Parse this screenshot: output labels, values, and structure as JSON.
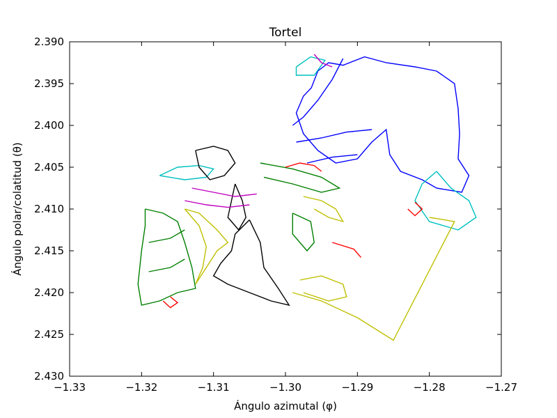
{
  "chart_data": {
    "type": "line",
    "title": "Tortel",
    "xlabel": "Ángulo azimutal (φ)",
    "ylabel": "Ángulo polar/colatitud (θ)",
    "xlim": [
      -1.33,
      -1.27
    ],
    "ylim": [
      2.43,
      2.39
    ],
    "y_inverted": true,
    "grid": false,
    "xticks": [
      -1.33,
      -1.32,
      -1.31,
      -1.3,
      -1.29,
      -1.28,
      -1.27
    ],
    "xtick_labels": [
      "−1.33",
      "−1.32",
      "−1.31",
      "−1.30",
      "−1.29",
      "−1.28",
      "−1.27"
    ],
    "yticks": [
      2.39,
      2.395,
      2.4,
      2.405,
      2.41,
      2.415,
      2.42,
      2.425,
      2.43
    ],
    "ytick_labels": [
      "2.390",
      "2.395",
      "2.400",
      "2.405",
      "2.410",
      "2.415",
      "2.420",
      "2.425",
      "2.430"
    ],
    "series": [
      {
        "color": "#0000ff",
        "points": [
          [
            -1.2964,
            2.3955
          ],
          [
            -1.2955,
            2.3935
          ],
          [
            -1.294,
            2.3925
          ],
          [
            -1.292,
            2.3928
          ],
          [
            -1.289,
            2.3918
          ],
          [
            -1.286,
            2.3925
          ],
          [
            -1.282,
            2.393
          ],
          [
            -1.279,
            2.3935
          ],
          [
            -1.2765,
            2.395
          ],
          [
            -1.276,
            2.398
          ],
          [
            -1.2758,
            2.401
          ],
          [
            -1.276,
            2.404
          ],
          [
            -1.2745,
            2.406
          ],
          [
            -1.2755,
            2.408
          ],
          [
            -1.279,
            2.4075
          ],
          [
            -1.281,
            2.4065
          ],
          [
            -1.284,
            2.4055
          ],
          [
            -1.2855,
            2.4035
          ],
          [
            -1.286,
            2.4005
          ],
          [
            -1.288,
            2.402
          ],
          [
            -1.29,
            2.404
          ],
          [
            -1.293,
            2.4045
          ],
          [
            -1.2955,
            2.403
          ],
          [
            -1.2975,
            2.401
          ],
          [
            -1.2985,
            2.3985
          ],
          [
            -1.2975,
            2.3965
          ],
          [
            -1.2964,
            2.3955
          ]
        ]
      },
      {
        "color": "#0000ff",
        "points": [
          [
            -1.292,
            2.392
          ],
          [
            -1.2935,
            2.3945
          ],
          [
            -1.2955,
            2.397
          ],
          [
            -1.2975,
            2.399
          ],
          [
            -1.299,
            2.4
          ]
        ]
      },
      {
        "color": "#0000ff",
        "points": [
          [
            -1.2985,
            2.402
          ],
          [
            -1.295,
            2.4015
          ],
          [
            -1.2915,
            2.4008
          ],
          [
            -1.288,
            2.4005
          ]
        ]
      },
      {
        "color": "#0000ff",
        "points": [
          [
            -1.297,
            2.4045
          ],
          [
            -1.2935,
            2.4038
          ],
          [
            -1.29,
            2.4035
          ]
        ]
      },
      {
        "color": "#00bfbf",
        "points": [
          [
            -1.279,
            2.4055
          ],
          [
            -1.277,
            2.4075
          ],
          [
            -1.2745,
            2.409
          ],
          [
            -1.2735,
            2.411
          ],
          [
            -1.276,
            2.4125
          ],
          [
            -1.28,
            2.4115
          ],
          [
            -1.282,
            2.409
          ],
          [
            -1.281,
            2.407
          ],
          [
            -1.279,
            2.4055
          ]
        ]
      },
      {
        "color": "#00bfbf",
        "points": [
          [
            -1.3175,
            2.406
          ],
          [
            -1.315,
            2.405
          ],
          [
            -1.312,
            2.4048
          ],
          [
            -1.31,
            2.4052
          ],
          [
            -1.311,
            2.4062
          ],
          [
            -1.314,
            2.4065
          ],
          [
            -1.3175,
            2.406
          ]
        ]
      },
      {
        "color": "#00bfbf",
        "points": [
          [
            -1.2985,
            2.393
          ],
          [
            -1.2965,
            2.3918
          ],
          [
            -1.2945,
            2.3922
          ],
          [
            -1.296,
            2.394
          ],
          [
            -1.2985,
            2.394
          ],
          [
            -1.2985,
            2.393
          ]
        ]
      },
      {
        "color": "#000000",
        "points": [
          [
            -1.305,
            2.4113
          ],
          [
            -1.3035,
            2.414
          ],
          [
            -1.303,
            2.417
          ],
          [
            -1.301,
            2.4195
          ],
          [
            -1.2995,
            2.4215
          ],
          [
            -1.302,
            2.421
          ],
          [
            -1.305,
            2.42
          ],
          [
            -1.308,
            2.419
          ],
          [
            -1.31,
            2.418
          ],
          [
            -1.309,
            2.4165
          ],
          [
            -1.3075,
            2.415
          ],
          [
            -1.307,
            2.413
          ],
          [
            -1.305,
            2.4113
          ]
        ]
      },
      {
        "color": "#000000",
        "points": [
          [
            -1.3125,
            2.403
          ],
          [
            -1.31,
            2.4025
          ],
          [
            -1.308,
            2.403
          ],
          [
            -1.307,
            2.4045
          ],
          [
            -1.3085,
            2.406
          ],
          [
            -1.3105,
            2.4065
          ],
          [
            -1.312,
            2.405
          ],
          [
            -1.3125,
            2.403
          ]
        ]
      },
      {
        "color": "#000000",
        "points": [
          [
            -1.307,
            2.407
          ],
          [
            -1.306,
            2.409
          ],
          [
            -1.3055,
            2.411
          ],
          [
            -1.3065,
            2.4125
          ],
          [
            -1.308,
            2.411
          ],
          [
            -1.307,
            2.407
          ]
        ]
      },
      {
        "color": "#bfbf00",
        "points": [
          [
            -1.314,
            2.41
          ],
          [
            -1.312,
            2.412
          ],
          [
            -1.311,
            2.4145
          ],
          [
            -1.3115,
            2.417
          ],
          [
            -1.3125,
            2.419
          ],
          [
            -1.311,
            2.417
          ],
          [
            -1.3095,
            2.415
          ],
          [
            -1.308,
            2.414
          ],
          [
            -1.3095,
            2.4125
          ],
          [
            -1.312,
            2.4105
          ],
          [
            -1.314,
            2.41
          ]
        ]
      },
      {
        "color": "#bfbf00",
        "points": [
          [
            -1.299,
            2.42
          ],
          [
            -1.295,
            2.421
          ],
          [
            -1.29,
            2.423
          ],
          [
            -1.285,
            2.4257
          ],
          [
            -1.2765,
            2.4115
          ],
          [
            -1.28,
            2.411
          ]
        ]
      },
      {
        "color": "#bfbf00",
        "points": [
          [
            -1.2975,
            2.4085
          ],
          [
            -1.295,
            2.409
          ],
          [
            -1.293,
            2.41
          ],
          [
            -1.292,
            2.4115
          ],
          [
            -1.294,
            2.411
          ],
          [
            -1.296,
            2.41
          ]
        ]
      },
      {
        "color": "#bfbf00",
        "points": [
          [
            -1.298,
            2.4185
          ],
          [
            -1.295,
            2.418
          ],
          [
            -1.292,
            2.419
          ],
          [
            -1.2915,
            2.4205
          ],
          [
            -1.294,
            2.421
          ],
          [
            -1.2975,
            2.42
          ]
        ]
      },
      {
        "color": "#008000",
        "points": [
          [
            -1.3195,
            2.41
          ],
          [
            -1.317,
            2.4105
          ],
          [
            -1.315,
            2.4115
          ],
          [
            -1.314,
            2.414
          ],
          [
            -1.313,
            2.417
          ],
          [
            -1.3125,
            2.4195
          ],
          [
            -1.315,
            2.42
          ],
          [
            -1.3175,
            2.421
          ],
          [
            -1.32,
            2.4215
          ],
          [
            -1.3205,
            2.419
          ],
          [
            -1.32,
            2.415
          ],
          [
            -1.3195,
            2.412
          ],
          [
            -1.3195,
            2.41
          ]
        ]
      },
      {
        "color": "#008000",
        "points": [
          [
            -1.3035,
            2.4045
          ],
          [
            -1.299,
            2.4052
          ],
          [
            -1.295,
            2.4062
          ],
          [
            -1.2925,
            2.4075
          ],
          [
            -1.295,
            2.408
          ],
          [
            -1.299,
            2.407
          ],
          [
            -1.303,
            2.4062
          ]
        ]
      },
      {
        "color": "#008000",
        "points": [
          [
            -1.299,
            2.4105
          ],
          [
            -1.2965,
            2.4115
          ],
          [
            -1.296,
            2.414
          ],
          [
            -1.297,
            2.415
          ],
          [
            -1.299,
            2.413
          ],
          [
            -1.299,
            2.4105
          ]
        ]
      },
      {
        "color": "#008000",
        "points": [
          [
            -1.319,
            2.4175
          ],
          [
            -1.316,
            2.417
          ],
          [
            -1.314,
            2.416
          ]
        ]
      },
      {
        "color": "#008000",
        "points": [
          [
            -1.319,
            2.414
          ],
          [
            -1.316,
            2.4135
          ],
          [
            -1.314,
            2.4125
          ]
        ]
      },
      {
        "color": "#ff0000",
        "points": [
          [
            -1.3,
            2.405
          ],
          [
            -1.298,
            2.4045
          ],
          [
            -1.296,
            2.4048
          ],
          [
            -1.295,
            2.4055
          ]
        ]
      },
      {
        "color": "#ff0000",
        "points": [
          [
            -1.2935,
            2.414
          ],
          [
            -1.2905,
            2.4148
          ],
          [
            -1.2895,
            2.4158
          ]
        ]
      },
      {
        "color": "#ff0000",
        "points": [
          [
            -1.282,
            2.4092
          ],
          [
            -1.281,
            2.41
          ],
          [
            -1.282,
            2.4108
          ],
          [
            -1.283,
            2.41
          ]
        ]
      },
      {
        "color": "#ff0000",
        "points": [
          [
            -1.316,
            2.4205
          ],
          [
            -1.315,
            2.4212
          ],
          [
            -1.316,
            2.4218
          ],
          [
            -1.317,
            2.421
          ]
        ]
      },
      {
        "color": "#bf00bf",
        "points": [
          [
            -1.313,
            2.4075
          ],
          [
            -1.31,
            2.408
          ],
          [
            -1.307,
            2.4085
          ],
          [
            -1.304,
            2.4082
          ]
        ]
      },
      {
        "color": "#bf00bf",
        "points": [
          [
            -1.314,
            2.409
          ],
          [
            -1.311,
            2.4095
          ],
          [
            -1.308,
            2.4098
          ],
          [
            -1.305,
            2.4095
          ]
        ]
      },
      {
        "color": "#bf00bf",
        "points": [
          [
            -1.296,
            2.3915
          ],
          [
            -1.295,
            2.3925
          ],
          [
            -1.2935,
            2.393
          ]
        ]
      }
    ]
  }
}
